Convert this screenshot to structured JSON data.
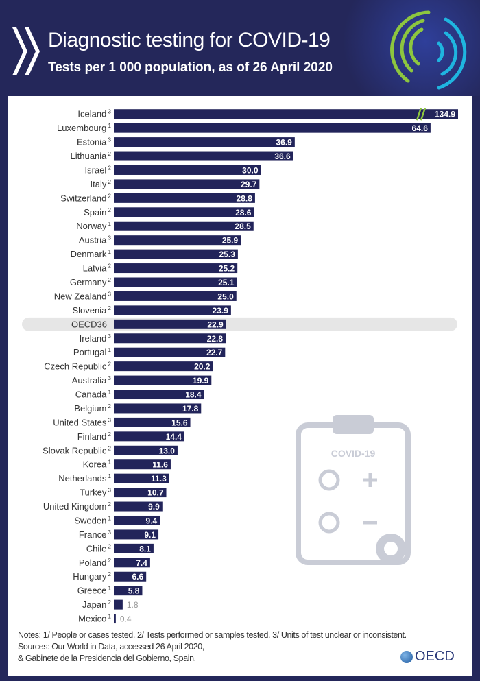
{
  "header": {
    "title": "Diagnostic testing for COVID-19",
    "subtitle": "Tests per 1 000 population, as of 26 April 2020"
  },
  "chart_data": {
    "type": "bar",
    "orientation": "horizontal",
    "title": "Diagnostic testing for COVID-19",
    "subtitle": "Tests per 1 000 population, as of 26 April 2020",
    "categories": [
      "Iceland",
      "Luxembourg",
      "Estonia",
      "Lithuania",
      "Israel",
      "Italy",
      "Switzerland",
      "Spain",
      "Norway",
      "Austria",
      "Denmark",
      "Latvia",
      "Germany",
      "New Zealand",
      "Slovenia",
      "OECD36",
      "Ireland",
      "Portugal",
      "Czech Republic",
      "Australia",
      "Canada",
      "Belgium",
      "United States",
      "Finland",
      "Slovak Republic",
      "Korea",
      "Netherlands",
      "Turkey",
      "United Kingdom",
      "Sweden",
      "France",
      "Chile",
      "Poland",
      "Hungary",
      "Greece",
      "Japan",
      "Mexico"
    ],
    "footnotes": [
      "3",
      "1",
      "3",
      "2",
      "2",
      "2",
      "2",
      "2",
      "1",
      "3",
      "1",
      "2",
      "2",
      "3",
      "2",
      "",
      "3",
      "1",
      "2",
      "3",
      "1",
      "2",
      "3",
      "2",
      "2",
      "1",
      "1",
      "3",
      "2",
      "1",
      "3",
      "2",
      "2",
      "2",
      "1",
      "2",
      "1"
    ],
    "values": [
      134.9,
      64.6,
      36.9,
      36.6,
      30.0,
      29.7,
      28.8,
      28.6,
      28.5,
      25.9,
      25.3,
      25.2,
      25.1,
      25.0,
      23.9,
      22.9,
      22.8,
      22.7,
      20.2,
      19.9,
      18.4,
      17.8,
      15.6,
      14.4,
      13.0,
      11.6,
      11.3,
      10.7,
      9.9,
      9.4,
      9.1,
      8.1,
      7.4,
      6.6,
      5.8,
      1.8,
      0.4
    ],
    "labels": [
      "134.9",
      "64.6",
      "36.9",
      "36.6",
      "30.0",
      "29.7",
      "28.8",
      "28.6",
      "28.5",
      "25.9",
      "25.3",
      "25.2",
      "25.1",
      "25.0",
      "23.9",
      "22.9",
      "22.8",
      "22.7",
      "20.2",
      "19.9",
      "18.4",
      "17.8",
      "15.6",
      "14.4",
      "13.0",
      "11.6",
      "11.3",
      "10.7",
      "9.9",
      "9.4",
      "9.1",
      "8.1",
      "7.4",
      "6.6",
      "5.8",
      "1.8",
      "0.4"
    ],
    "highlight": "OECD36",
    "axis_break": "Iceland",
    "bar_color": "#22245a",
    "highlight_band_color": "#e6e6e6"
  },
  "illustration": {
    "label": "COVID-19"
  },
  "notes": {
    "line1": "Notes: 1/ People or cases tested. 2/ Tests performed or samples tested. 3/ Units of test unclear or inconsistent.",
    "line2": "Sources:  Our World in Data, accessed 26 April 2020,",
    "line3": "& Gabinete de la Presidencia del Gobierno, Spain."
  },
  "brand": {
    "name": "OECD"
  }
}
